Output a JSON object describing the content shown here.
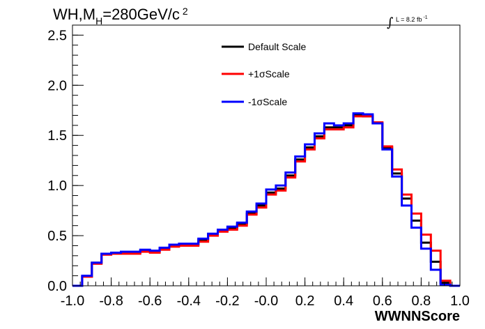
{
  "chart_data": {
    "type": "line",
    "title": {
      "prefix": "WH,M",
      "subscript": "H",
      "mid": "=280GeV/c",
      "superscript": "2"
    },
    "luminosity": {
      "symbol": "∫",
      "text": "L = 8.2 fb",
      "superscript": "-1"
    },
    "xlabel": "WWNNScore",
    "ylabel": "",
    "xlim": [
      -1.0,
      1.0
    ],
    "ylim": [
      0.0,
      2.6
    ],
    "x_ticks": [
      "-1.0",
      "-0.8",
      "-0.6",
      "-0.4",
      "-0.2",
      "-0.0",
      "0.2",
      "0.4",
      "0.6",
      "0.8",
      "1.0"
    ],
    "y_ticks": [
      "0.0",
      "0.5",
      "1.0",
      "1.5",
      "2.0",
      "2.5"
    ],
    "bin_edges": [
      -1.0,
      -0.95,
      -0.9,
      -0.85,
      -0.8,
      -0.75,
      -0.7,
      -0.65,
      -0.6,
      -0.55,
      -0.5,
      -0.45,
      -0.4,
      -0.35,
      -0.3,
      -0.25,
      -0.2,
      -0.15,
      -0.1,
      -0.05,
      0.0,
      0.05,
      0.1,
      0.15,
      0.2,
      0.25,
      0.3,
      0.35,
      0.4,
      0.45,
      0.5,
      0.55,
      0.6,
      0.65,
      0.7,
      0.75,
      0.8,
      0.85,
      0.9,
      0.95,
      1.0
    ],
    "legend_position": "top-center",
    "series": [
      {
        "name": "Default Scale",
        "color": "#000000",
        "values": [
          0.0,
          0.09,
          0.23,
          0.32,
          0.33,
          0.33,
          0.33,
          0.35,
          0.34,
          0.37,
          0.4,
          0.41,
          0.41,
          0.46,
          0.51,
          0.55,
          0.58,
          0.62,
          0.72,
          0.8,
          0.93,
          0.97,
          1.1,
          1.26,
          1.38,
          1.49,
          1.58,
          1.58,
          1.6,
          1.7,
          1.69,
          1.62,
          1.38,
          1.12,
          0.87,
          0.65,
          0.43,
          0.24,
          0.03,
          0.0
        ]
      },
      {
        "name": "+1σScale",
        "color": "#ff0000",
        "values": [
          0.0,
          0.09,
          0.22,
          0.31,
          0.32,
          0.32,
          0.32,
          0.34,
          0.33,
          0.36,
          0.39,
          0.4,
          0.4,
          0.44,
          0.5,
          0.54,
          0.56,
          0.6,
          0.71,
          0.78,
          0.91,
          0.95,
          1.08,
          1.24,
          1.36,
          1.47,
          1.56,
          1.56,
          1.58,
          1.69,
          1.69,
          1.63,
          1.39,
          1.16,
          0.91,
          0.72,
          0.51,
          0.35,
          0.05,
          0.0
        ]
      },
      {
        "name": "-1σScale",
        "color": "#0000ff",
        "values": [
          0.0,
          0.1,
          0.23,
          0.32,
          0.33,
          0.34,
          0.34,
          0.36,
          0.35,
          0.38,
          0.41,
          0.42,
          0.42,
          0.47,
          0.52,
          0.56,
          0.59,
          0.63,
          0.74,
          0.82,
          0.96,
          1.0,
          1.13,
          1.29,
          1.41,
          1.52,
          1.62,
          1.6,
          1.62,
          1.72,
          1.71,
          1.62,
          1.36,
          1.09,
          0.8,
          0.58,
          0.37,
          0.16,
          0.01,
          0.0
        ]
      }
    ]
  }
}
